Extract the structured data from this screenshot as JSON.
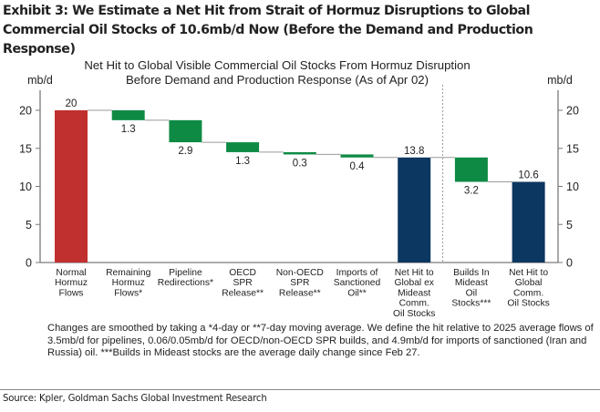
{
  "exhibit": {
    "title": "Exhibit 3: We Estimate a Net Hit from Strait of Hormuz Disruptions to Global Commercial Oil Stocks of 10.6mb/d Now (Before the Demand and Production Response)"
  },
  "chart_data": {
    "type": "bar",
    "subtype": "waterfall",
    "title": [
      "Net Hit to Global Visible Commercial Oil Stocks From Hormuz Disruption",
      "Before Demand and Production Response (As of Apr 02)"
    ],
    "ylabel_left": "mb/d",
    "ylabel_right": "mb/d",
    "ylim": [
      0,
      20
    ],
    "yticks": [
      0,
      5,
      10,
      15,
      20
    ],
    "grid": false,
    "legend": "none",
    "colors": {
      "start": "#c0302e",
      "decrease": "#0f8a45",
      "total": "#0c3760",
      "connector": "#9a9a9a",
      "axis": "#7a7a7a"
    },
    "categories": [
      [
        "Normal",
        "Hormuz",
        "Flows"
      ],
      [
        "Remaining",
        "Hormuz",
        "Flows*"
      ],
      [
        "Pipeline",
        "Redirections*"
      ],
      [
        "OECD",
        "SPR",
        "Release**"
      ],
      [
        "Non-OECD",
        "SPR",
        "Release**"
      ],
      [
        "Imports of",
        "Sanctioned",
        "Oil**"
      ],
      [
        "Net Hit to",
        "Global ex",
        "Mideast",
        "Comm.",
        "Oil Stocks"
      ],
      [
        "Builds In",
        "Mideast",
        "Oil",
        "Stocks***"
      ],
      [
        "Net Hit to",
        "Global",
        "Comm.",
        "Oil Stocks"
      ]
    ],
    "bars": [
      {
        "kind": "start",
        "value": 20,
        "label": "20"
      },
      {
        "kind": "decrease",
        "value": 1.3,
        "label": "1.3"
      },
      {
        "kind": "decrease",
        "value": 2.9,
        "label": "2.9"
      },
      {
        "kind": "decrease",
        "value": 1.3,
        "label": "1.3"
      },
      {
        "kind": "decrease",
        "value": 0.3,
        "label": "0.3"
      },
      {
        "kind": "decrease",
        "value": 0.4,
        "label": "0.4"
      },
      {
        "kind": "total",
        "value": 13.8,
        "label": "13.8"
      },
      {
        "kind": "decrease",
        "value": 3.2,
        "label": "3.2"
      },
      {
        "kind": "total",
        "value": 10.6,
        "label": "10.6"
      }
    ],
    "separator_after_index": 6
  },
  "footnote": "Changes are smoothed by taking a *4-day or **7-day moving average. We define the hit relative to 2025 average flows of 3.5mb/d for pipelines, 0.06/0.05mb/d for OECD/non-OECD SPR builds, and 4.9mb/d for imports of sanctioned (Iran and Russia) oil. ***Builds in Mideast stocks are the average daily change since Feb 27.",
  "source": "Source: Kpler, Goldman Sachs Global Investment Research"
}
